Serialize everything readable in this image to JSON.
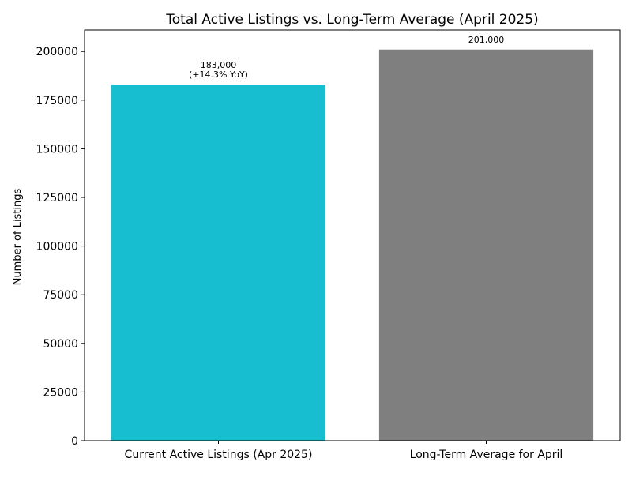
{
  "chart_data": {
    "type": "bar",
    "title": "Total Active Listings vs. Long-Term Average (April 2025)",
    "xlabel": "",
    "ylabel": "Number of Listings",
    "categories": [
      "Current Active Listings (Apr 2025)",
      "Long-Term Average for April"
    ],
    "values": [
      183000,
      201000
    ],
    "colors": [
      "#17becf",
      "#7f7f7f"
    ],
    "data_labels": [
      [
        "183,000",
        "(+14.3% YoY)"
      ],
      [
        "201,000"
      ]
    ],
    "yticks": [
      0,
      25000,
      50000,
      75000,
      100000,
      125000,
      150000,
      175000,
      200000
    ],
    "ylim": [
      0,
      211050
    ],
    "grid": false,
    "legend": "none"
  }
}
